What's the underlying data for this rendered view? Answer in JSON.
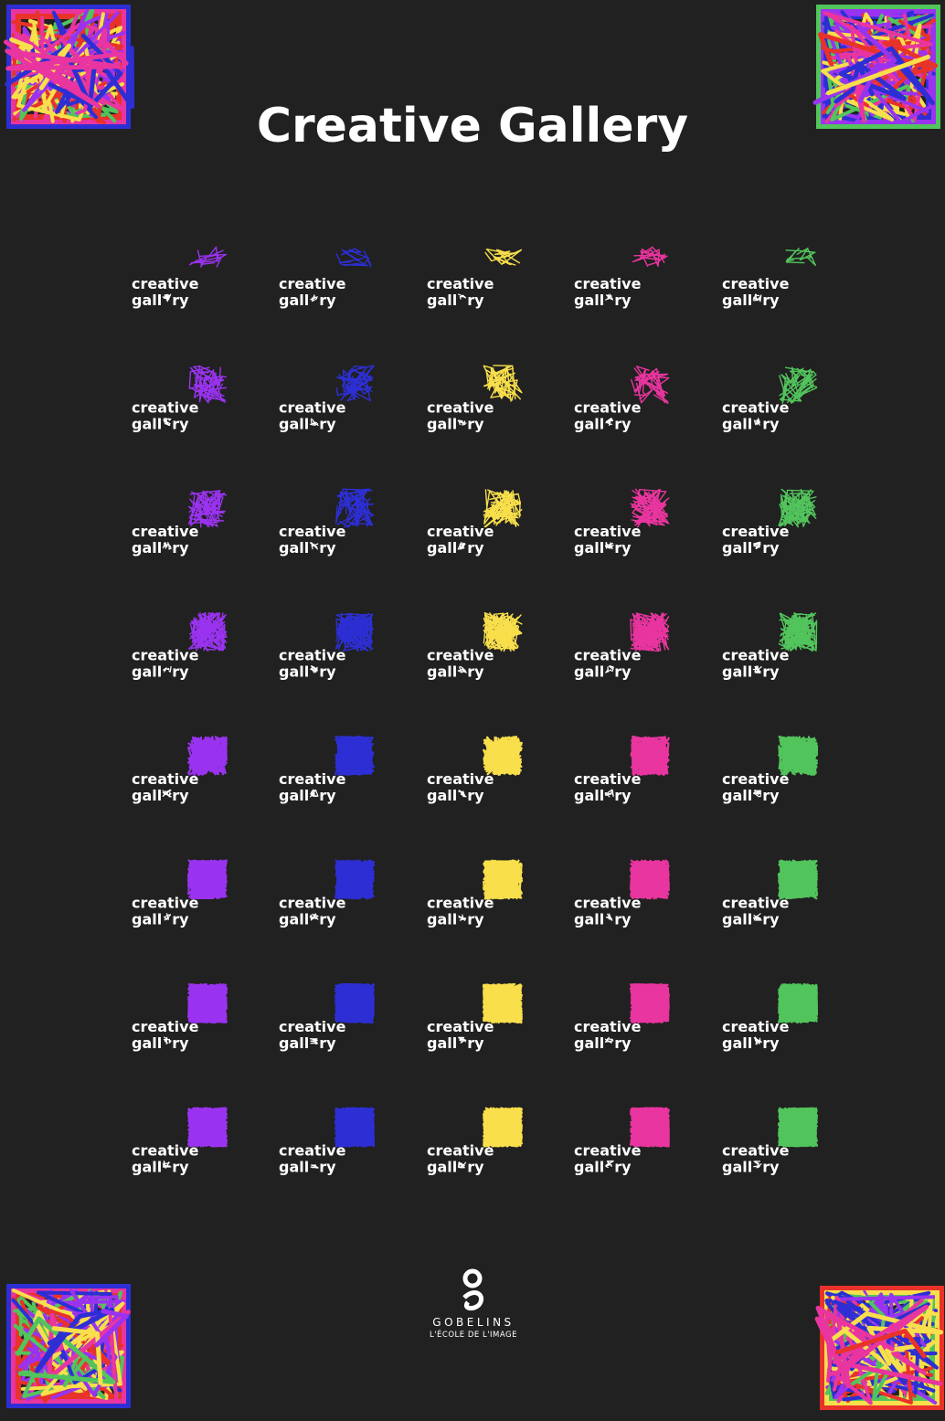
{
  "header": {
    "title": "Creative Gallery"
  },
  "logo": {
    "line1": "creative",
    "line2_start": "gall",
    "line2_end": "ry"
  },
  "palette": [
    "#9a33f0",
    "#2d2fd4",
    "#f8df4b",
    "#e9359f",
    "#52c45c"
  ],
  "corner_palette": [
    "#e8322a",
    "#f8df4b",
    "#52c45c",
    "#9a33f0",
    "#2d2fd4",
    "#e9359f"
  ],
  "footer": {
    "brand": "GOBELINS",
    "tagline": "L'ÉCOLE DE L'IMAGE"
  }
}
